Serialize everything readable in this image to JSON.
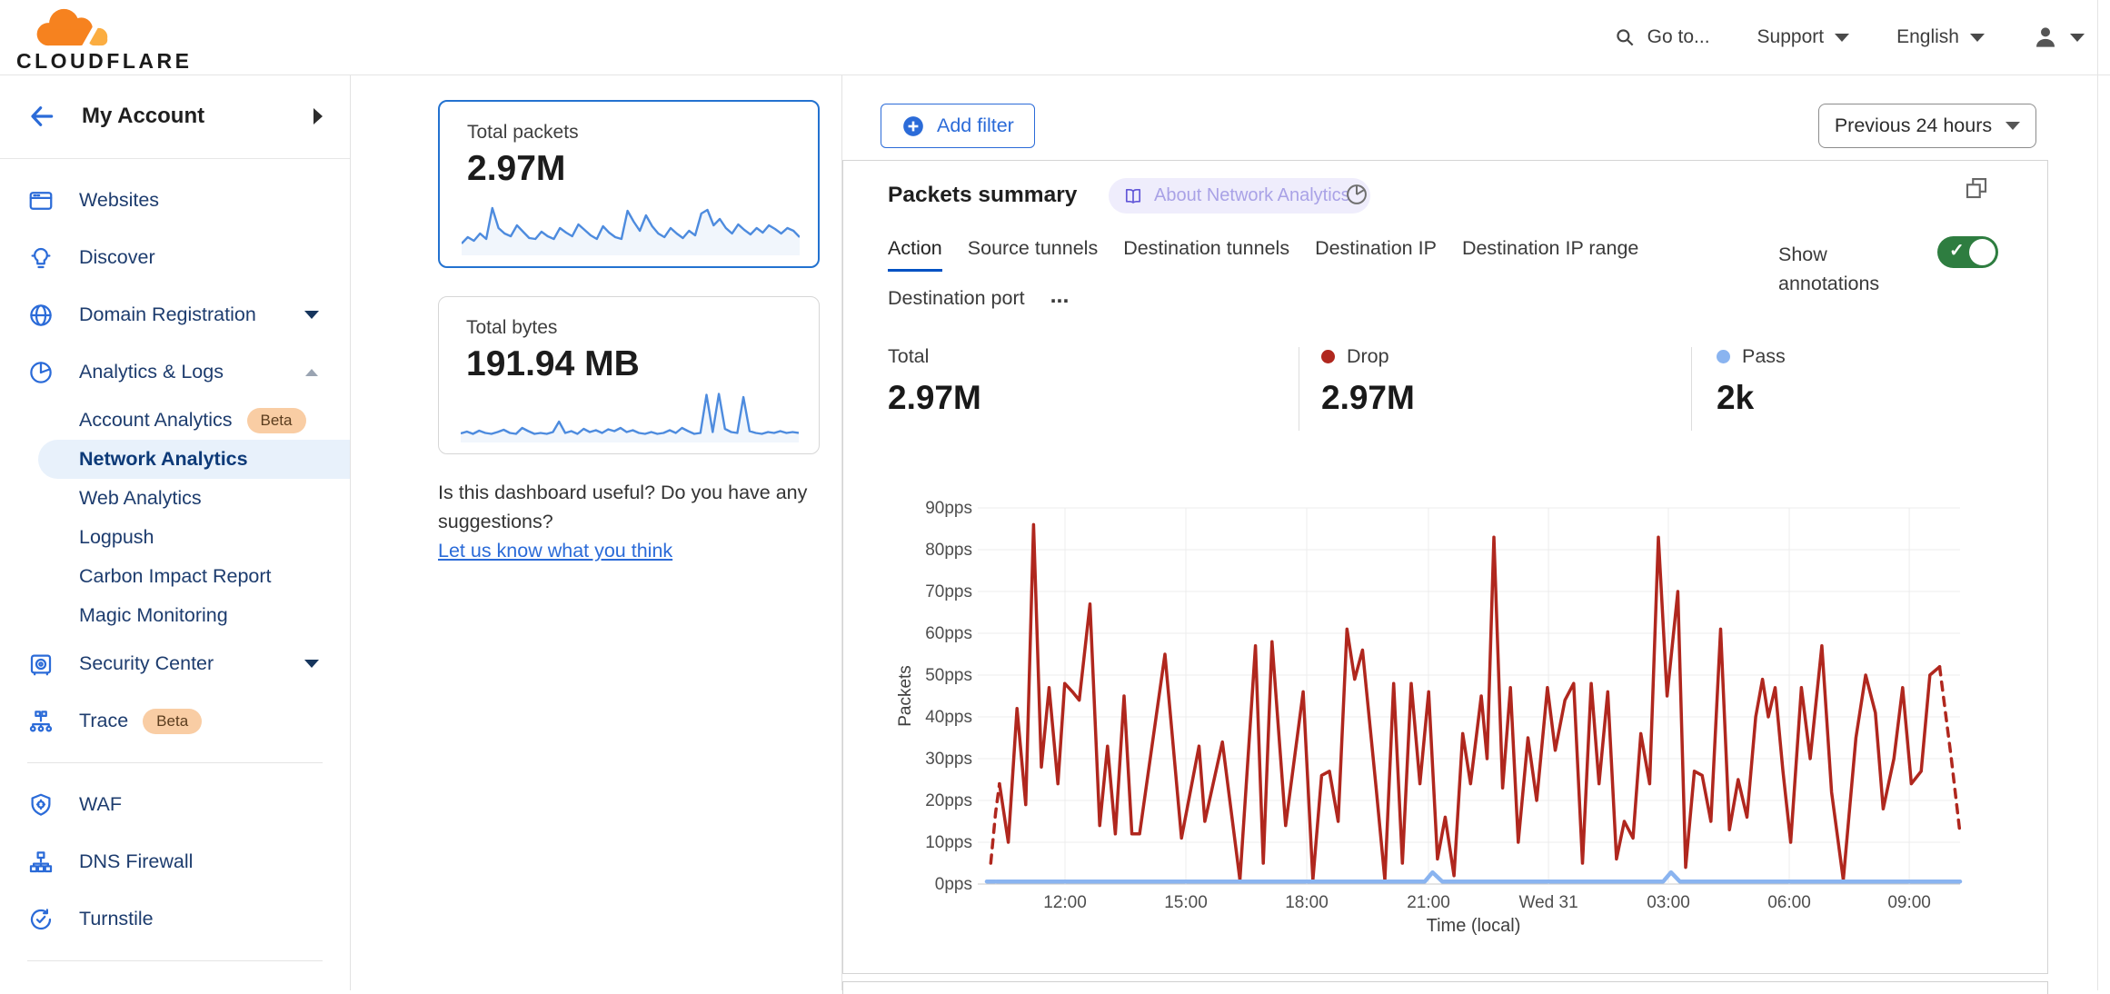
{
  "header": {
    "logo_text": "CLOUDFLARE",
    "goto_label": "Go to...",
    "support_label": "Support",
    "language_label": "English"
  },
  "sidebar": {
    "account_label": "My Account",
    "items": [
      {
        "name": "websites",
        "label": "Websites",
        "icon": "browser-icon"
      },
      {
        "name": "discover",
        "label": "Discover",
        "icon": "lightbulb-icon"
      },
      {
        "name": "domain-registration",
        "label": "Domain Registration",
        "icon": "globe-icon",
        "caret": "down"
      },
      {
        "name": "analytics-logs",
        "label": "Analytics & Logs",
        "icon": "pie-chart-icon",
        "caret": "up"
      },
      {
        "name": "account-analytics",
        "label": "Account Analytics",
        "sub": true,
        "badge": "Beta"
      },
      {
        "name": "network-analytics",
        "label": "Network Analytics",
        "sub": true,
        "selected": true
      },
      {
        "name": "web-analytics",
        "label": "Web Analytics",
        "sub": true
      },
      {
        "name": "logpush",
        "label": "Logpush",
        "sub": true
      },
      {
        "name": "carbon-impact-report",
        "label": "Carbon Impact Report",
        "sub": true
      },
      {
        "name": "magic-monitoring",
        "label": "Magic Monitoring",
        "sub": true
      },
      {
        "name": "security-center",
        "label": "Security Center",
        "icon": "safe-icon",
        "caret": "down"
      },
      {
        "name": "trace",
        "label": "Trace",
        "icon": "trace-nodes-icon",
        "badge": "Beta"
      },
      {
        "divider": true
      },
      {
        "name": "waf",
        "label": "WAF",
        "icon": "shield-gear-icon"
      },
      {
        "name": "dns-firewall",
        "label": "DNS Firewall",
        "icon": "hierarchy-icon"
      },
      {
        "name": "turnstile",
        "label": "Turnstile",
        "icon": "rotate-check-icon"
      },
      {
        "divider": true
      },
      {
        "name": "partial-item",
        "label": "",
        "icon": "burst-icon",
        "partial": true
      }
    ]
  },
  "overview_cards": [
    {
      "label": "Total packets",
      "value": "2.97M",
      "spark": [
        18,
        32,
        24,
        40,
        28,
        96,
        52,
        40,
        34,
        58,
        44,
        30,
        28,
        44,
        34,
        28,
        52,
        42,
        34,
        60,
        48,
        36,
        28,
        56,
        42,
        32,
        28,
        90,
        66,
        46,
        80,
        56,
        40,
        32,
        52,
        40,
        30,
        46,
        36,
        84,
        92,
        58,
        72,
        52,
        40,
        60,
        48,
        38,
        52,
        42,
        58,
        50,
        40,
        52,
        46,
        32
      ]
    },
    {
      "label": "Total bytes",
      "value": "191.94 MB",
      "spark": [
        12,
        16,
        11,
        18,
        13,
        11,
        15,
        20,
        13,
        11,
        24,
        17,
        11,
        13,
        11,
        15,
        38,
        13,
        17,
        11,
        22,
        15,
        19,
        13,
        21,
        17,
        24,
        15,
        19,
        13,
        11,
        15,
        11,
        13,
        19,
        13,
        24,
        17,
        11,
        13,
        97,
        15,
        99,
        22,
        15,
        13,
        92,
        17,
        13,
        11,
        15,
        13,
        17,
        13,
        15,
        13
      ]
    }
  ],
  "feedback": {
    "text": "Is this dashboard useful? Do you have any suggestions?",
    "link": "Let us know what you think"
  },
  "filters": {
    "add_filter_label": "Add filter",
    "time_range_label": "Previous 24 hours"
  },
  "panel": {
    "title": "Packets summary",
    "about_badge": "About Network Analytics",
    "tabs": [
      "Action",
      "Source tunnels",
      "Destination tunnels",
      "Destination IP",
      "Destination IP range",
      "Destination port"
    ],
    "active_tab": "Action",
    "more_tabs_label": "...",
    "show_annotations_label": "Show annotations",
    "annotations_on": true,
    "stats": [
      {
        "label": "Total",
        "value": "2.97M",
        "dot": null
      },
      {
        "label": "Drop",
        "value": "2.97M",
        "dot": "#b0271e"
      },
      {
        "label": "Pass",
        "value": "2k",
        "dot": "#8ab4f0"
      }
    ]
  },
  "chart_data": {
    "type": "line",
    "title": "Packets summary",
    "xlabel": "Time (local)",
    "ylabel": "Packets",
    "ylim": [
      0,
      90
    ],
    "y_ticks": [
      {
        "v": 0,
        "label": "0pps"
      },
      {
        "v": 10,
        "label": "10pps"
      },
      {
        "v": 20,
        "label": "20pps"
      },
      {
        "v": 30,
        "label": "30pps"
      },
      {
        "v": 40,
        "label": "40pps"
      },
      {
        "v": 50,
        "label": "50pps"
      },
      {
        "v": 60,
        "label": "60pps"
      },
      {
        "v": 70,
        "label": "70pps"
      },
      {
        "v": 80,
        "label": "80pps"
      },
      {
        "v": 90,
        "label": "90pps"
      }
    ],
    "x_ticks": [
      {
        "f": 0.0803,
        "label": "12:00"
      },
      {
        "f": 0.2045,
        "label": "15:00"
      },
      {
        "f": 0.3287,
        "label": "18:00"
      },
      {
        "f": 0.4538,
        "label": "21:00"
      },
      {
        "f": 0.5771,
        "label": "Wed 31"
      },
      {
        "f": 0.7003,
        "label": "03:00"
      },
      {
        "f": 0.8245,
        "label": "06:00"
      },
      {
        "f": 0.9478,
        "label": "09:00"
      }
    ],
    "grid": true,
    "legend_position": "top-stats-row",
    "series": [
      {
        "name": "Drop",
        "color": "#b0271e",
        "width": 3.5,
        "dashed_head": 3,
        "dashed_tail": 3,
        "points": [
          [
            0.004,
            5
          ],
          [
            0.009,
            17
          ],
          [
            0.013,
            24
          ],
          [
            0.022,
            10
          ],
          [
            0.031,
            42
          ],
          [
            0.04,
            19
          ],
          [
            0.048,
            86
          ],
          [
            0.056,
            28
          ],
          [
            0.064,
            47
          ],
          [
            0.073,
            24
          ],
          [
            0.08,
            48
          ],
          [
            0.088,
            46
          ],
          [
            0.095,
            44
          ],
          [
            0.106,
            67
          ],
          [
            0.116,
            14
          ],
          [
            0.124,
            33
          ],
          [
            0.132,
            12
          ],
          [
            0.141,
            45
          ],
          [
            0.149,
            12
          ],
          [
            0.157,
            12
          ],
          [
            0.183,
            55
          ],
          [
            0.2,
            11
          ],
          [
            0.218,
            33
          ],
          [
            0.224,
            15
          ],
          [
            0.242,
            34
          ],
          [
            0.26,
            1
          ],
          [
            0.276,
            57
          ],
          [
            0.284,
            5
          ],
          [
            0.293,
            58
          ],
          [
            0.307,
            14
          ],
          [
            0.325,
            46
          ],
          [
            0.335,
            1
          ],
          [
            0.344,
            26
          ],
          [
            0.352,
            27
          ],
          [
            0.361,
            15
          ],
          [
            0.37,
            61
          ],
          [
            0.378,
            49
          ],
          [
            0.386,
            56
          ],
          [
            0.4,
            23
          ],
          [
            0.409,
            1
          ],
          [
            0.418,
            48
          ],
          [
            0.427,
            5
          ],
          [
            0.436,
            48
          ],
          [
            0.445,
            24
          ],
          [
            0.454,
            46
          ],
          [
            0.463,
            6
          ],
          [
            0.471,
            16
          ],
          [
            0.48,
            2
          ],
          [
            0.489,
            36
          ],
          [
            0.497,
            24
          ],
          [
            0.508,
            45
          ],
          [
            0.514,
            30
          ],
          [
            0.521,
            83
          ],
          [
            0.53,
            23
          ],
          [
            0.538,
            47
          ],
          [
            0.546,
            10
          ],
          [
            0.556,
            35
          ],
          [
            0.565,
            20
          ],
          [
            0.576,
            47
          ],
          [
            0.584,
            32
          ],
          [
            0.594,
            44
          ],
          [
            0.603,
            48
          ],
          [
            0.612,
            5
          ],
          [
            0.621,
            48
          ],
          [
            0.629,
            24
          ],
          [
            0.638,
            46
          ],
          [
            0.647,
            6
          ],
          [
            0.655,
            15
          ],
          [
            0.664,
            11
          ],
          [
            0.672,
            36
          ],
          [
            0.681,
            24
          ],
          [
            0.69,
            83
          ],
          [
            0.699,
            45
          ],
          [
            0.71,
            70
          ],
          [
            0.718,
            4
          ],
          [
            0.727,
            27
          ],
          [
            0.735,
            26
          ],
          [
            0.744,
            15
          ],
          [
            0.754,
            61
          ],
          [
            0.763,
            13
          ],
          [
            0.772,
            25
          ],
          [
            0.781,
            16
          ],
          [
            0.79,
            40
          ],
          [
            0.797,
            49
          ],
          [
            0.803,
            40
          ],
          [
            0.81,
            47
          ],
          [
            0.818,
            27
          ],
          [
            0.826,
            10
          ],
          [
            0.837,
            47
          ],
          [
            0.846,
            30
          ],
          [
            0.858,
            57
          ],
          [
            0.868,
            22
          ],
          [
            0.88,
            1
          ],
          [
            0.893,
            35
          ],
          [
            0.903,
            50
          ],
          [
            0.913,
            41
          ],
          [
            0.921,
            18
          ],
          [
            0.932,
            30
          ],
          [
            0.941,
            47
          ],
          [
            0.95,
            24
          ],
          [
            0.96,
            27
          ],
          [
            0.969,
            50
          ],
          [
            0.979,
            52
          ],
          [
            0.991,
            30
          ],
          [
            1.0,
            12
          ]
        ]
      },
      {
        "name": "Pass",
        "color": "#8ab4f0",
        "width": 4.5,
        "dashed_head": 2,
        "dashed_tail": 0,
        "points": [
          [
            0.0,
            0.6
          ],
          [
            0.01,
            0.6
          ],
          [
            0.45,
            0.6
          ],
          [
            0.458,
            2.8
          ],
          [
            0.468,
            0.6
          ],
          [
            0.695,
            0.6
          ],
          [
            0.703,
            2.8
          ],
          [
            0.712,
            0.6
          ],
          [
            1.0,
            0.6
          ]
        ]
      }
    ]
  },
  "colors": {
    "accent_blue": "#2b6bd8",
    "active_tab_underline": "#0051c3",
    "selected_card_border": "#2372d0",
    "drop_red": "#b0271e",
    "pass_blue": "#8ab4f0",
    "toggle_green": "#2e7d40",
    "beta_badge_bg": "#f9cda4",
    "about_pill_bg": "#efedfc",
    "about_pill_text": "#a9a2e6",
    "logo_orange": "#f6821f",
    "logo_light_orange": "#fbad41"
  }
}
